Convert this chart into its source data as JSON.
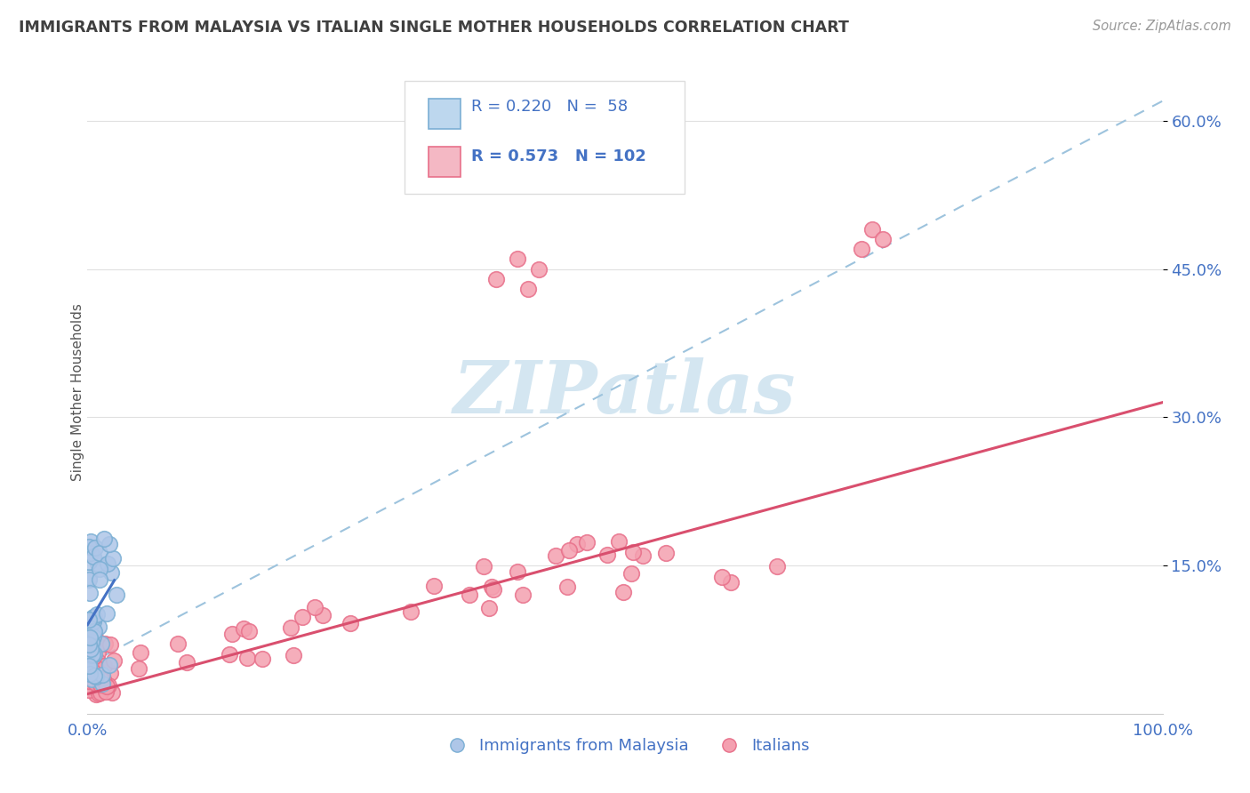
{
  "title": "IMMIGRANTS FROM MALAYSIA VS ITALIAN SINGLE MOTHER HOUSEHOLDS CORRELATION CHART",
  "source": "Source: ZipAtlas.com",
  "ylabel": "Single Mother Households",
  "ytick_labels": [
    "15.0%",
    "30.0%",
    "45.0%",
    "60.0%"
  ],
  "ytick_values": [
    0.15,
    0.3,
    0.45,
    0.6
  ],
  "xlim": [
    0.0,
    1.0
  ],
  "ylim": [
    0.0,
    0.65
  ],
  "legend_r1": "R = 0.220",
  "legend_n1": "N =  58",
  "legend_r2": "R = 0.573",
  "legend_n2": "N = 102",
  "blue_marker_face": "#aec6e8",
  "blue_marker_edge": "#7bafd4",
  "pink_marker_face": "#f4a0b0",
  "pink_marker_edge": "#e8708a",
  "trend_blue_color": "#4472c4",
  "trend_pink_color": "#d94f6e",
  "dashed_line_color": "#9dc3dd",
  "watermark_color": "#d0e4f0",
  "grid_color": "#e0e0e0",
  "title_color": "#404040",
  "axis_tick_color": "#4472c4",
  "source_color": "#999999",
  "background_color": "#ffffff",
  "legend_box_color": "#dddddd",
  "legend_text_color": "#4472c4",
  "legend_blue_face": "#bdd7ee",
  "legend_blue_edge": "#7bafd4",
  "legend_pink_face": "#f4b8c4",
  "legend_pink_edge": "#e8708a"
}
